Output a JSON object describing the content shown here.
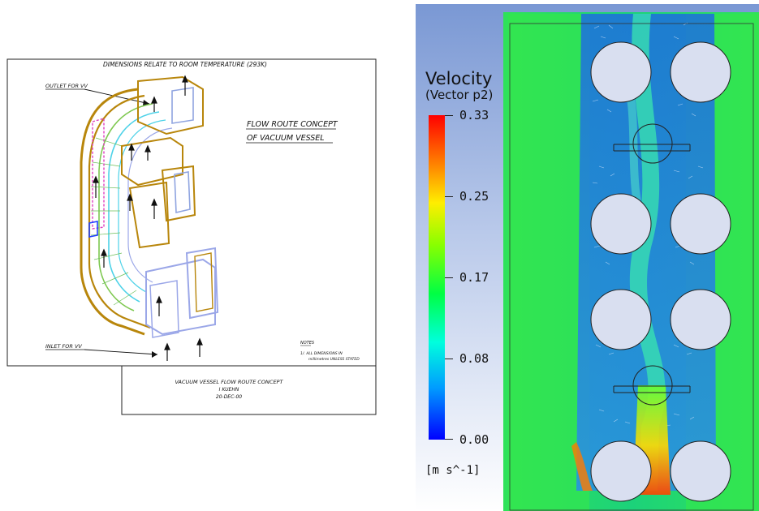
{
  "drawing": {
    "header_note": "DIMENSIONS RELATE TO ROOM TEMPERATURE (293K)",
    "concept_title_line1": "FLOW ROUTE CONCEPT",
    "concept_title_line2": "OF VACUUM VESSEL",
    "outlet_label": "OUTLET FOR VV",
    "inlet_label": "INLET FOR VV",
    "notes_heading": "NOTES",
    "notes_line1": "1/.  ALL DIMENSIONS IN",
    "notes_line2": "millimetres UNLESS STATED",
    "title_block_line1": "VACUUM VESSEL FLOW ROUTE CONCEPT",
    "title_block_line2": "I KUEHN",
    "title_block_line3": "20-DEC-00"
  },
  "legend": {
    "title": "Velocity",
    "subtitle": "(Vector p2)",
    "ticks": [
      "0.33",
      "0.25",
      "0.17",
      "0.08",
      "0.00"
    ],
    "units": "[m s^-1]",
    "min": 0.0,
    "max": 0.33
  },
  "colors": {
    "low": "#0000ff",
    "mid_low": "#00ffdd",
    "mid": "#00ff44",
    "mid_high": "#ffee00",
    "high": "#ff0000",
    "background_top": "#7a98d4"
  }
}
